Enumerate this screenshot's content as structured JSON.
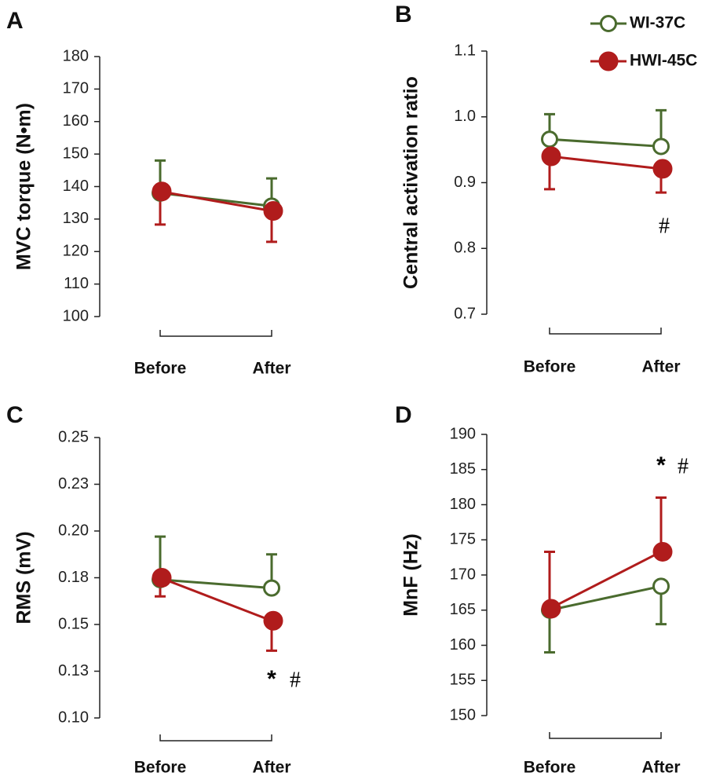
{
  "chart_data": [
    {
      "type": "line",
      "panel_label": "A",
      "ylabel": "MVC torque (N•m)",
      "categories": [
        "Before",
        "After"
      ],
      "ylim": [
        100,
        180
      ],
      "yticks": [
        100,
        110,
        120,
        130,
        140,
        150,
        160,
        170,
        180
      ],
      "series": [
        {
          "name": "WI-37C",
          "color": "#4a6b2e",
          "marker": "open",
          "values": [
            138,
            134
          ],
          "errors": [
            10,
            8.5
          ],
          "error_direction": "up"
        },
        {
          "name": "HWI-45C",
          "color": "#b01c1c",
          "marker": "filled",
          "values": [
            138.5,
            132.5
          ],
          "errors": [
            10.2,
            9.5
          ],
          "error_direction": "down"
        }
      ]
    },
    {
      "type": "line",
      "panel_label": "B",
      "ylabel": "Central activation ratio",
      "categories": [
        "Before",
        "After"
      ],
      "ylim": [
        0.7,
        1.1
      ],
      "yticks": [
        0.7,
        0.8,
        0.9,
        {
          "value": 1,
          "label": "1.0"
        },
        1.1
      ],
      "legend": "top-right",
      "annotations": [
        "#"
      ],
      "series": [
        {
          "name": "WI-37C",
          "color": "#4a6b2e",
          "marker": "open",
          "values": [
            0.966,
            0.955
          ],
          "errors": [
            0.038,
            0.055
          ],
          "error_direction": "up"
        },
        {
          "name": "HWI-45C",
          "color": "#b01c1c",
          "marker": "filled",
          "values": [
            0.94,
            0.921
          ],
          "errors": [
            0.05,
            0.036
          ],
          "error_direction": "down"
        }
      ]
    },
    {
      "type": "line",
      "panel_label": "C",
      "ylabel": "RMS (mV)",
      "categories": [
        "Before",
        "After"
      ],
      "ylim": [
        0.1,
        0.25
      ],
      "yticks": [
        {
          "value": 0.1,
          "label": "0.10"
        },
        {
          "value": 0.125,
          "label": "0.13"
        },
        {
          "value": 0.15,
          "label": "0.15"
        },
        {
          "value": 0.175,
          "label": "0.18"
        },
        {
          "value": 0.2,
          "label": "0.20"
        },
        {
          "value": 0.225,
          "label": "0.23"
        },
        {
          "value": 0.25,
          "label": "0.25"
        }
      ],
      "annotations": [
        "*",
        "#"
      ],
      "series": [
        {
          "name": "WI-37C",
          "color": "#4a6b2e",
          "marker": "open",
          "values": [
            0.174,
            0.1695
          ],
          "errors": [
            0.023,
            0.018
          ],
          "error_direction": "up"
        },
        {
          "name": "HWI-45C",
          "color": "#b01c1c",
          "marker": "filled",
          "values": [
            0.175,
            0.152
          ],
          "errors": [
            0.01,
            0.016
          ],
          "error_direction": "down"
        }
      ]
    },
    {
      "type": "line",
      "panel_label": "D",
      "ylabel": "MnF (Hz)",
      "categories": [
        "Before",
        "After"
      ],
      "ylim": [
        150,
        190
      ],
      "yticks": [
        150,
        155,
        160,
        165,
        170,
        175,
        180,
        185,
        190
      ],
      "annotations": [
        "*",
        "#"
      ],
      "series": [
        {
          "name": "WI-37C",
          "color": "#4a6b2e",
          "marker": "open",
          "values": [
            165,
            168.4
          ],
          "errors": [
            6,
            5.4
          ],
          "error_direction": "down"
        },
        {
          "name": "HWI-45C",
          "color": "#b01c1c",
          "marker": "filled",
          "values": [
            165.2,
            173.3
          ],
          "errors": [
            8.1,
            7.7
          ],
          "error_direction": "up"
        }
      ]
    }
  ]
}
